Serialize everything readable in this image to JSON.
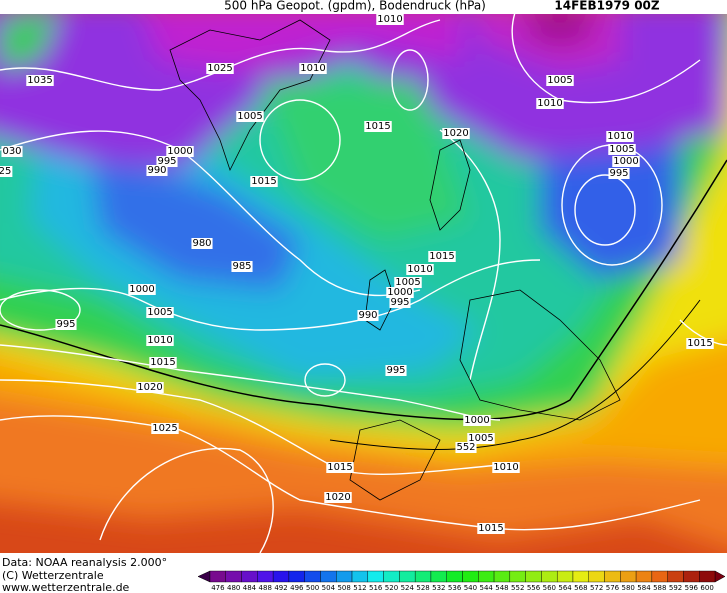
{
  "header": {
    "title": "500 hPa Geopot. (gpdm), Bodendruck (hPa)",
    "date": "14FEB1979 00Z"
  },
  "isobar_labels": [
    "1010",
    "1025",
    "1010",
    "1005",
    "1010",
    "1035",
    "1005",
    "1015",
    "1020",
    "1010",
    "1005",
    "1000",
    "995",
    "030",
    "25",
    "1000",
    "995",
    "990",
    "1015",
    "980",
    "985",
    "1015",
    "1010",
    "1005",
    "1000",
    "995",
    "1000",
    "1005",
    "990",
    "995",
    "1010",
    "1015",
    "995",
    "1015",
    "1020",
    "1025",
    "1000",
    "1005",
    "552",
    "1010",
    "1015",
    "1020",
    "1015"
  ],
  "footer": {
    "lines": [
      "Data: NOAA reanalysis 2.000°",
      "(C) Wetterzentrale",
      "www.wetterzentrale.de"
    ]
  },
  "legend": {
    "levels": [
      476,
      480,
      484,
      488,
      492,
      496,
      500,
      504,
      508,
      512,
      516,
      520,
      524,
      528,
      532,
      536,
      540,
      544,
      548,
      552,
      556,
      560,
      564,
      568,
      572,
      576,
      580,
      584,
      588,
      592,
      596,
      600
    ]
  }
}
